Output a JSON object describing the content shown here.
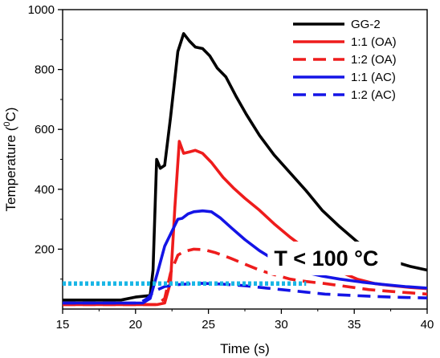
{
  "chart_data": {
    "type": "line",
    "xlabel": "Time (s)",
    "ylabel": "Temperature (",
    "ylabel_sup": "0",
    "ylabel_tail": "C)",
    "xlim": [
      15,
      40
    ],
    "ylim": [
      0,
      1000
    ],
    "xticks": [
      15,
      20,
      25,
      30,
      35,
      40
    ],
    "yticks": [
      200,
      400,
      600,
      800,
      1000
    ],
    "grid": false,
    "legend_position": "top-right",
    "annotation": {
      "text": "T < 100 °C",
      "x": 29.5,
      "y": 145
    },
    "threshold": {
      "y": 85,
      "x": [
        15,
        31.7
      ],
      "color": "#19b6e6",
      "style": "dotted"
    },
    "series": [
      {
        "name": "GG-2",
        "color": "#000000",
        "dash": "solid",
        "points": [
          [
            15,
            30
          ],
          [
            17,
            30
          ],
          [
            19,
            30
          ],
          [
            20,
            40
          ],
          [
            21,
            45
          ],
          [
            21.2,
            130
          ],
          [
            21.45,
            500
          ],
          [
            21.7,
            470
          ],
          [
            22,
            480
          ],
          [
            22.4,
            640
          ],
          [
            22.9,
            860
          ],
          [
            23.3,
            920
          ],
          [
            23.7,
            895
          ],
          [
            24.1,
            875
          ],
          [
            24.6,
            870
          ],
          [
            25.1,
            845
          ],
          [
            25.6,
            805
          ],
          [
            26.2,
            775
          ],
          [
            26.9,
            710
          ],
          [
            27.6,
            650
          ],
          [
            28.5,
            580
          ],
          [
            29.5,
            515
          ],
          [
            30.6,
            455
          ],
          [
            31.7,
            395
          ],
          [
            32.8,
            330
          ],
          [
            34,
            275
          ],
          [
            35.2,
            225
          ],
          [
            36.4,
            185
          ],
          [
            37.5,
            162
          ],
          [
            38.8,
            143
          ],
          [
            40,
            130
          ]
        ]
      },
      {
        "name": "1:1 (OA)",
        "color": "#ee1c1c",
        "dash": "solid",
        "points": [
          [
            15,
            15
          ],
          [
            21.5,
            15
          ],
          [
            22,
            20
          ],
          [
            22.4,
            90
          ],
          [
            22.7,
            340
          ],
          [
            23,
            560
          ],
          [
            23.3,
            520
          ],
          [
            23.7,
            525
          ],
          [
            24.1,
            530
          ],
          [
            24.6,
            520
          ],
          [
            25.2,
            490
          ],
          [
            26,
            440
          ],
          [
            26.7,
            405
          ],
          [
            27.5,
            370
          ],
          [
            28.5,
            330
          ],
          [
            29.5,
            285
          ],
          [
            30.6,
            240
          ],
          [
            31.7,
            200
          ],
          [
            32.8,
            160
          ],
          [
            34,
            125
          ],
          [
            35.2,
            100
          ],
          [
            36.4,
            85
          ],
          [
            37.6,
            78
          ],
          [
            38.8,
            72
          ],
          [
            40,
            68
          ]
        ]
      },
      {
        "name": "1:2 (OA)",
        "color": "#ee1c1c",
        "dash": "dashed",
        "points": [
          [
            15,
            15
          ],
          [
            21.5,
            15
          ],
          [
            22,
            35
          ],
          [
            22.4,
            120
          ],
          [
            22.9,
            180
          ],
          [
            23.3,
            192
          ],
          [
            24,
            200
          ],
          [
            24.7,
            198
          ],
          [
            25.5,
            188
          ],
          [
            26.5,
            170
          ],
          [
            27.5,
            150
          ],
          [
            28.5,
            130
          ],
          [
            29.5,
            115
          ],
          [
            30.6,
            100
          ],
          [
            31.7,
            92
          ],
          [
            33,
            85
          ],
          [
            34.5,
            75
          ],
          [
            36,
            65
          ],
          [
            38,
            57
          ],
          [
            40,
            50
          ]
        ]
      },
      {
        "name": "1:1 (AC)",
        "color": "#1414e6",
        "dash": "solid",
        "points": [
          [
            15,
            20
          ],
          [
            20.5,
            20
          ],
          [
            21,
            35
          ],
          [
            21.5,
            120
          ],
          [
            22,
            210
          ],
          [
            22.5,
            260
          ],
          [
            22.9,
            300
          ],
          [
            23.2,
            303
          ],
          [
            23.6,
            318
          ],
          [
            24,
            325
          ],
          [
            24.6,
            328
          ],
          [
            25.2,
            325
          ],
          [
            25.8,
            305
          ],
          [
            26.6,
            270
          ],
          [
            27.5,
            232
          ],
          [
            28.5,
            195
          ],
          [
            29.5,
            165
          ],
          [
            30.6,
            140
          ],
          [
            31.7,
            122
          ],
          [
            32.8,
            110
          ],
          [
            34,
            100
          ],
          [
            35.5,
            90
          ],
          [
            37,
            82
          ],
          [
            38.5,
            75
          ],
          [
            40,
            70
          ]
        ]
      },
      {
        "name": "1:2 (AC)",
        "color": "#1414e6",
        "dash": "dashed",
        "points": [
          [
            15,
            20
          ],
          [
            20.3,
            20
          ],
          [
            20.8,
            35
          ],
          [
            21.3,
            60
          ],
          [
            22,
            75
          ],
          [
            23,
            82
          ],
          [
            24.5,
            86
          ],
          [
            26,
            83
          ],
          [
            27.5,
            78
          ],
          [
            29,
            70
          ],
          [
            31,
            60
          ],
          [
            33,
            50
          ],
          [
            35,
            45
          ],
          [
            37.5,
            40
          ],
          [
            40,
            37
          ]
        ]
      }
    ]
  }
}
